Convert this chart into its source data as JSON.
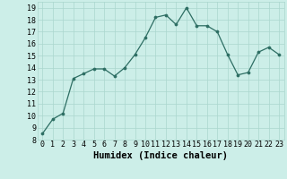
{
  "x": [
    0,
    1,
    2,
    3,
    4,
    5,
    6,
    7,
    8,
    9,
    10,
    11,
    12,
    13,
    14,
    15,
    16,
    17,
    18,
    19,
    20,
    21,
    22,
    23
  ],
  "y": [
    8.5,
    9.7,
    10.2,
    13.1,
    13.5,
    13.9,
    13.9,
    13.3,
    14.0,
    15.1,
    16.5,
    18.2,
    18.4,
    17.6,
    19.0,
    17.5,
    17.5,
    17.0,
    15.1,
    13.4,
    13.6,
    15.3,
    15.7,
    15.1
  ],
  "xlabel": "Humidex (Indice chaleur)",
  "xlim": [
    -0.5,
    23.5
  ],
  "ylim": [
    8,
    19.5
  ],
  "yticks": [
    8,
    9,
    10,
    11,
    12,
    13,
    14,
    15,
    16,
    17,
    18,
    19
  ],
  "xticks": [
    0,
    1,
    2,
    3,
    4,
    5,
    6,
    7,
    8,
    9,
    10,
    11,
    12,
    13,
    14,
    15,
    16,
    17,
    18,
    19,
    20,
    21,
    22,
    23
  ],
  "line_color": "#2d6e63",
  "marker_color": "#2d6e63",
  "bg_color": "#cceee8",
  "grid_color": "#aad6ce",
  "text_color": "#000000",
  "tick_fontsize": 6.0,
  "xlabel_fontsize": 7.5
}
